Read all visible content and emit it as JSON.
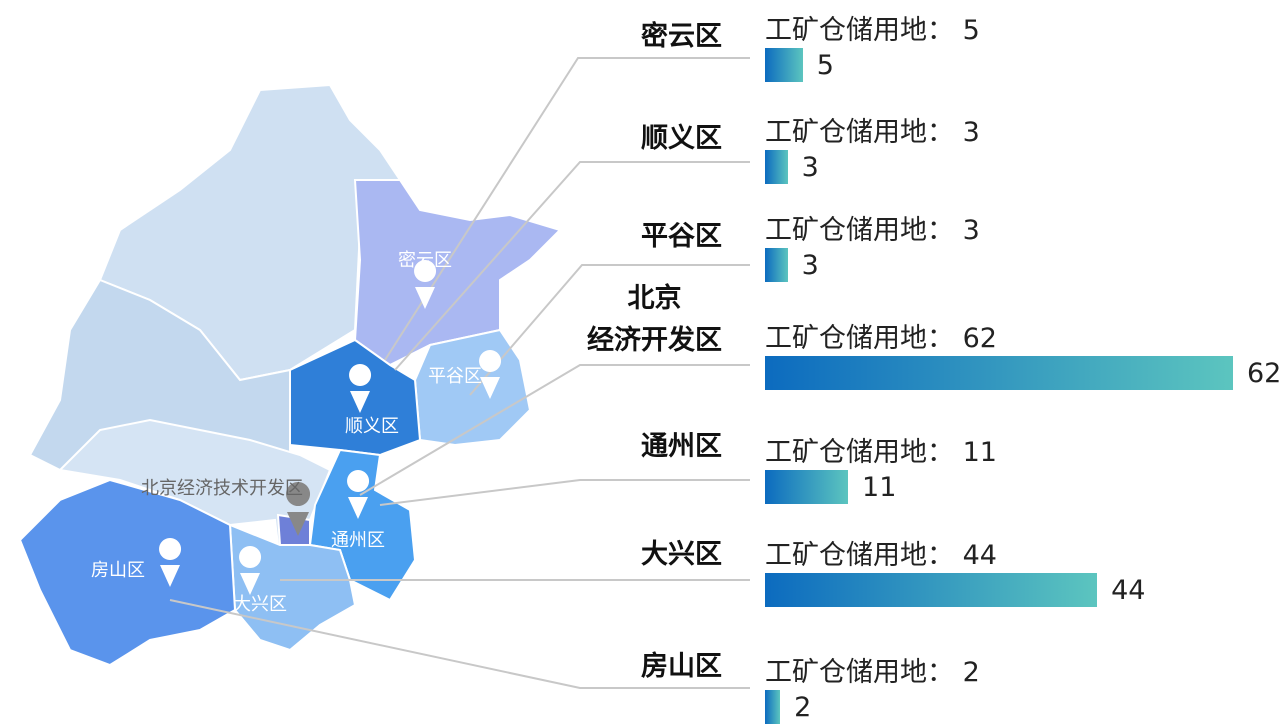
{
  "map": {
    "regions": [
      {
        "label": "密云区"
      },
      {
        "label": "平谷区"
      },
      {
        "label": "顺义区"
      },
      {
        "label": "北京经济技术开发区"
      },
      {
        "label": "通州区"
      },
      {
        "label": "大兴区"
      },
      {
        "label": "房山区"
      }
    ]
  },
  "chart_data": {
    "type": "bar",
    "metric_label": "工矿仓储用地：",
    "categories": [
      "密云区",
      "顺义区",
      "平谷区",
      "北京\n经济开发区",
      "通州区",
      "大兴区",
      "房山区"
    ],
    "values": [
      5,
      3,
      3,
      62,
      11,
      44,
      2
    ]
  }
}
